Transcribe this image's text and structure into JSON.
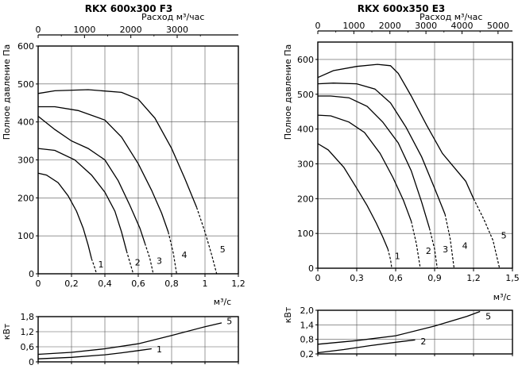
{
  "chart_data": [
    {
      "type": "line",
      "title": "RKX 600x300 F3",
      "ylabel": "Полное давление Па",
      "xlabel_bottom": "м³/с",
      "xlabel_top": "Расход м³/час",
      "x_ticks": [
        "0",
        "0,2",
        "0,4",
        "0,6",
        "0,8",
        "1",
        "1,2"
      ],
      "x_tick_values": [
        0,
        0.2,
        0.4,
        0.6,
        0.8,
        1.0,
        1.2
      ],
      "xlim": [
        0,
        1.2
      ],
      "y_ticks": [
        "0",
        "100",
        "200",
        "300",
        "400",
        "500",
        "600"
      ],
      "y_tick_values": [
        0,
        100,
        200,
        300,
        400,
        500,
        600
      ],
      "ylim": [
        0,
        600
      ],
      "top_ticks": [
        "0",
        "1000",
        "2000",
        "3000"
      ],
      "top_tick_values": [
        0,
        1000,
        2000,
        3000
      ],
      "top_lim": [
        0,
        4320
      ],
      "series": [
        {
          "name": "1",
          "solid": [
            [
              0,
              265
            ],
            [
              0.05,
              260
            ],
            [
              0.12,
              240
            ],
            [
              0.18,
              205
            ],
            [
              0.23,
              165
            ],
            [
              0.27,
              120
            ],
            [
              0.3,
              75
            ],
            [
              0.32,
              40
            ]
          ],
          "dashed": [
            [
              0.32,
              40
            ],
            [
              0.34,
              15
            ],
            [
              0.35,
              0
            ]
          ],
          "label_at": [
            0.35,
            25
          ]
        },
        {
          "name": "2",
          "solid": [
            [
              0,
              330
            ],
            [
              0.1,
              325
            ],
            [
              0.22,
              300
            ],
            [
              0.32,
              260
            ],
            [
              0.4,
              215
            ],
            [
              0.46,
              165
            ],
            [
              0.5,
              110
            ],
            [
              0.53,
              60
            ]
          ],
          "dashed": [
            [
              0.53,
              60
            ],
            [
              0.55,
              30
            ],
            [
              0.57,
              0
            ]
          ],
          "label_at": [
            0.57,
            30
          ]
        },
        {
          "name": "3",
          "solid": [
            [
              0,
              415
            ],
            [
              0.1,
              380
            ],
            [
              0.2,
              350
            ],
            [
              0.3,
              330
            ],
            [
              0.4,
              300
            ],
            [
              0.48,
              245
            ],
            [
              0.55,
              180
            ],
            [
              0.61,
              120
            ],
            [
              0.64,
              80
            ]
          ],
          "dashed": [
            [
              0.64,
              80
            ],
            [
              0.67,
              40
            ],
            [
              0.69,
              0
            ]
          ],
          "label_at": [
            0.7,
            35
          ]
        },
        {
          "name": "4",
          "solid": [
            [
              0,
              440
            ],
            [
              0.1,
              440
            ],
            [
              0.24,
              430
            ],
            [
              0.4,
              405
            ],
            [
              0.5,
              360
            ],
            [
              0.6,
              290
            ],
            [
              0.68,
              220
            ],
            [
              0.74,
              160
            ],
            [
              0.78,
              110
            ]
          ],
          "dashed": [
            [
              0.78,
              110
            ],
            [
              0.81,
              55
            ],
            [
              0.83,
              0
            ]
          ],
          "label_at": [
            0.85,
            50
          ]
        },
        {
          "name": "5",
          "solid": [
            [
              0,
              475
            ],
            [
              0.1,
              482
            ],
            [
              0.3,
              485
            ],
            [
              0.5,
              478
            ],
            [
              0.6,
              460
            ],
            [
              0.7,
              410
            ],
            [
              0.8,
              330
            ],
            [
              0.88,
              250
            ],
            [
              0.95,
              175
            ]
          ],
          "dashed": [
            [
              0.95,
              175
            ],
            [
              1.0,
              110
            ],
            [
              1.04,
              50
            ],
            [
              1.07,
              0
            ]
          ],
          "label_at": [
            1.08,
            65
          ]
        }
      ]
    },
    {
      "type": "line",
      "ylabel": "кВт",
      "y_ticks": [
        "0",
        "0,6",
        "1,2",
        "1,8"
      ],
      "y_tick_values": [
        0,
        0.6,
        1.2,
        1.8
      ],
      "ylim": [
        0,
        1.8
      ],
      "xlim": [
        0,
        1.2
      ],
      "series": [
        {
          "name": "1",
          "values": [
            [
              0,
              0.12
            ],
            [
              0.2,
              0.18
            ],
            [
              0.4,
              0.28
            ],
            [
              0.5,
              0.36
            ],
            [
              0.6,
              0.45
            ],
            [
              0.68,
              0.52
            ]
          ],
          "label_at": [
            0.7,
            0.5
          ]
        },
        {
          "name": "5",
          "values": [
            [
              0,
              0.3
            ],
            [
              0.2,
              0.38
            ],
            [
              0.4,
              0.52
            ],
            [
              0.6,
              0.72
            ],
            [
              0.8,
              1.05
            ],
            [
              1.0,
              1.4
            ],
            [
              1.1,
              1.55
            ]
          ],
          "label_at": [
            1.12,
            1.62
          ]
        }
      ]
    },
    {
      "type": "line",
      "title": "RKX 600x350 E3",
      "ylabel": "Полное давление Па",
      "xlabel_bottom": "м³/с",
      "xlabel_top": "Расход м³/час",
      "x_ticks": [
        "0",
        "0,3",
        "0,6",
        "0,9",
        "1,2",
        "1,5"
      ],
      "x_tick_values": [
        0,
        0.3,
        0.6,
        0.9,
        1.2,
        1.5
      ],
      "xlim": [
        0,
        1.5
      ],
      "y_ticks": [
        "0",
        "100",
        "200",
        "300",
        "400",
        "500",
        "600"
      ],
      "y_tick_values": [
        0,
        100,
        200,
        300,
        400,
        500,
        600
      ],
      "ylim": [
        0,
        650
      ],
      "top_ticks": [
        "0",
        "1000",
        "2000",
        "3000",
        "4000",
        "5000"
      ],
      "top_tick_values": [
        0,
        1000,
        2000,
        3000,
        4000,
        5000
      ],
      "top_lim": [
        0,
        5400
      ],
      "series": [
        {
          "name": "1",
          "solid": [
            [
              0,
              358
            ],
            [
              0.08,
              340
            ],
            [
              0.2,
              290
            ],
            [
              0.3,
              230
            ],
            [
              0.38,
              180
            ],
            [
              0.45,
              130
            ],
            [
              0.5,
              90
            ],
            [
              0.54,
              55
            ]
          ],
          "dashed": [
            [
              0.54,
              55
            ],
            [
              0.56,
              25
            ],
            [
              0.57,
              0
            ]
          ],
          "label_at": [
            0.58,
            35
          ]
        },
        {
          "name": "2",
          "solid": [
            [
              0,
              440
            ],
            [
              0.1,
              438
            ],
            [
              0.24,
              420
            ],
            [
              0.36,
              390
            ],
            [
              0.48,
              330
            ],
            [
              0.58,
              260
            ],
            [
              0.66,
              195
            ],
            [
              0.72,
              135
            ]
          ],
          "dashed": [
            [
              0.72,
              135
            ],
            [
              0.76,
              70
            ],
            [
              0.79,
              0
            ]
          ],
          "label_at": [
            0.82,
            50
          ]
        },
        {
          "name": "3",
          "solid": [
            [
              0,
              495
            ],
            [
              0.1,
              495
            ],
            [
              0.24,
              490
            ],
            [
              0.38,
              465
            ],
            [
              0.5,
              420
            ],
            [
              0.62,
              360
            ],
            [
              0.72,
              280
            ],
            [
              0.8,
              190
            ],
            [
              0.86,
              115
            ]
          ],
          "dashed": [
            [
              0.86,
              115
            ],
            [
              0.9,
              55
            ],
            [
              0.92,
              0
            ]
          ],
          "label_at": [
            0.95,
            55
          ]
        },
        {
          "name": "4",
          "solid": [
            [
              0,
              530
            ],
            [
              0.12,
              532
            ],
            [
              0.3,
              530
            ],
            [
              0.44,
              515
            ],
            [
              0.56,
              475
            ],
            [
              0.68,
              405
            ],
            [
              0.8,
              320
            ],
            [
              0.9,
              230
            ],
            [
              0.98,
              155
            ]
          ],
          "dashed": [
            [
              0.98,
              155
            ],
            [
              1.02,
              85
            ],
            [
              1.05,
              0
            ]
          ],
          "label_at": [
            1.1,
            65
          ]
        },
        {
          "name": "5",
          "solid": [
            [
              0,
              548
            ],
            [
              0.12,
              568
            ],
            [
              0.3,
              580
            ],
            [
              0.46,
              586
            ],
            [
              0.56,
              582
            ],
            [
              0.62,
              560
            ],
            [
              0.72,
              495
            ],
            [
              0.84,
              410
            ],
            [
              0.96,
              330
            ],
            [
              1.14,
              250
            ],
            [
              1.2,
              200
            ]
          ],
          "dashed": [
            [
              1.2,
              200
            ],
            [
              1.28,
              140
            ],
            [
              1.35,
              80
            ],
            [
              1.4,
              0
            ]
          ],
          "label_at": [
            1.4,
            95
          ]
        }
      ]
    },
    {
      "type": "line",
      "ylabel": "кВт",
      "y_ticks": [
        "0,2",
        "0,8",
        "1,4",
        "2,0"
      ],
      "y_tick_values": [
        0.2,
        0.8,
        1.4,
        2.0
      ],
      "ylim": [
        0.2,
        2.0
      ],
      "xlim": [
        0,
        1.5
      ],
      "series": [
        {
          "name": "2",
          "values": [
            [
              0,
              0.25
            ],
            [
              0.2,
              0.38
            ],
            [
              0.4,
              0.54
            ],
            [
              0.6,
              0.68
            ],
            [
              0.75,
              0.78
            ]
          ],
          "label_at": [
            0.78,
            0.72
          ]
        },
        {
          "name": "5",
          "values": [
            [
              0,
              0.6
            ],
            [
              0.3,
              0.75
            ],
            [
              0.6,
              0.95
            ],
            [
              0.9,
              1.35
            ],
            [
              1.15,
              1.75
            ],
            [
              1.25,
              1.95
            ]
          ],
          "label_at": [
            1.28,
            1.75
          ]
        }
      ]
    }
  ]
}
